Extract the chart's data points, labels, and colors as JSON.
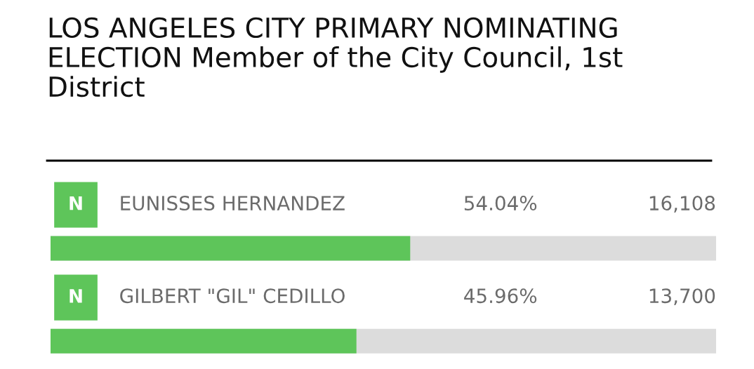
{
  "chart_data": {
    "type": "bar",
    "orientation": "horizontal",
    "title": "LOS ANGELES CITY PRIMARY NOMINATING ELECTION Member of the City Council, 1st District",
    "categories": [
      "EUNISSES HERNANDEZ",
      "GILBERT \"GIL\" CEDILLO"
    ],
    "series": [
      {
        "color": "#5ec55a",
        "values": [
          54.04,
          45.96
        ],
        "value_labels": [
          "54.04%",
          "45.96%"
        ]
      }
    ],
    "xlim": [
      0,
      100
    ],
    "tick_labels": false,
    "annotations": [
      "N",
      "16,108",
      "N",
      "13,700"
    ]
  }
}
